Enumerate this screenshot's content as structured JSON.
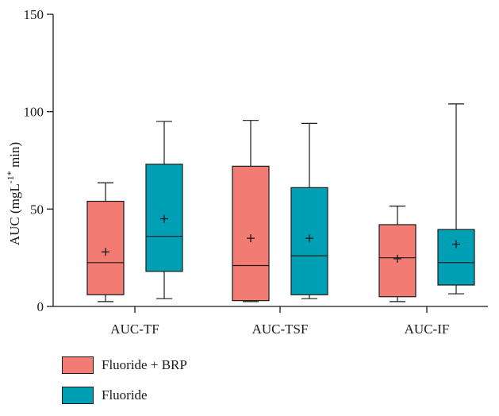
{
  "chart_data": {
    "type": "box",
    "categories": [
      "AUC-TF",
      "AUC-TSF",
      "AUC-IF"
    ],
    "ylabel_main": "AUC (mgL",
    "ylabel_sup": "-1*",
    "ylabel_tail": " min)",
    "ylim": [
      0,
      150
    ],
    "yticks": [
      "0",
      "50",
      "100",
      "150"
    ],
    "grid": false,
    "legend_position": "bottom-left",
    "series": [
      {
        "name": "Fluoride + BRP",
        "color": "#f27b74",
        "boxes": [
          {
            "min": 2.5,
            "q1": 6,
            "median": 22.5,
            "q3": 54,
            "max": 63.5,
            "mean": 28
          },
          {
            "min": 2.5,
            "q1": 3,
            "median": 21,
            "q3": 72,
            "max": 95.5,
            "mean": 35
          },
          {
            "min": 2.5,
            "q1": 5,
            "median": 25,
            "q3": 42,
            "max": 51.5,
            "mean": 24.5
          }
        ]
      },
      {
        "name": "Fluoride",
        "color": "#00a0b4",
        "boxes": [
          {
            "min": 4,
            "q1": 18,
            "median": 36,
            "q3": 73,
            "max": 95,
            "mean": 45
          },
          {
            "min": 4,
            "q1": 6,
            "median": 26,
            "q3": 61,
            "max": 94,
            "mean": 35
          },
          {
            "min": 6.5,
            "q1": 11,
            "median": 22.5,
            "q3": 39.5,
            "max": 104,
            "mean": 32
          }
        ]
      }
    ]
  }
}
